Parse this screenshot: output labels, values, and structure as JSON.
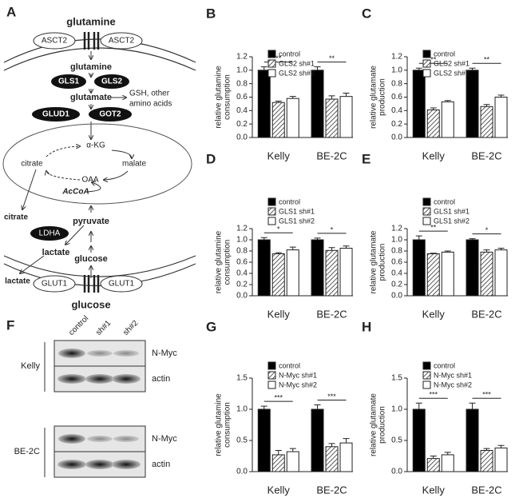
{
  "diagram": {
    "label": "A",
    "texts": [
      "glutamine",
      "ASCT2",
      "ASCT2",
      "glutamine",
      "GLS1",
      "GLS2",
      "glutamate",
      "GSH, other",
      "amino acids",
      "GLUD1",
      "GOT2",
      "α-KG",
      "citrate",
      "malate",
      "OAA",
      "AcCoA",
      "citrate",
      "pyruvate",
      "LDHA",
      "lactate",
      "glucose",
      "lactate",
      "GLUT1",
      "GLUT1",
      "glucose"
    ]
  },
  "blot": {
    "label": "F",
    "columns": [
      "control",
      "sh#1",
      "sh#2"
    ],
    "groups": [
      {
        "name": "Kelly",
        "rows": [
          "N-Myc",
          "actin"
        ]
      },
      {
        "name": "BE-2C",
        "rows": [
          "N-Myc",
          "actin"
        ]
      }
    ]
  },
  "chart_data": [
    {
      "type": "bar",
      "label": "B",
      "ylabel": [
        "relative glutamine",
        "consumption"
      ],
      "categories": [
        "Kelly",
        "BE-2C"
      ],
      "ylim": [
        0,
        1.2
      ],
      "yticks": [
        {
          "value": 0,
          "label": "0.0"
        },
        0.2,
        0.4,
        0.6,
        0.8,
        {
          "value": 1,
          "label": "1.0"
        },
        1.2
      ],
      "significance": [
        "**",
        "**"
      ],
      "series": [
        {
          "name": "control",
          "color": "#000000",
          "values": [
            1.0,
            1.0
          ],
          "errors": [
            0.05,
            0.05
          ]
        },
        {
          "name": "GLS2 sh#1",
          "color": "hatch",
          "values": [
            0.52,
            0.57
          ],
          "errors": [
            0.02,
            0.05
          ]
        },
        {
          "name": "GLS2 sh#2",
          "color": "#ffffff",
          "values": [
            0.58,
            0.61
          ],
          "errors": [
            0.03,
            0.05
          ]
        }
      ]
    },
    {
      "type": "bar",
      "label": "C",
      "ylabel": [
        "relative glutamate",
        "production"
      ],
      "categories": [
        "Kelly",
        "BE-2C"
      ],
      "ylim": [
        0,
        1.2
      ],
      "yticks": [
        {
          "value": 0,
          "label": "0.0"
        },
        0.2,
        0.4,
        0.6,
        0.8,
        {
          "value": 1,
          "label": "1.0"
        },
        1.2
      ],
      "significance": [
        "**",
        "**"
      ],
      "series": [
        {
          "name": "control",
          "color": "#000000",
          "values": [
            1.0,
            1.0
          ],
          "errors": [
            0.03,
            0.03
          ]
        },
        {
          "name": "GLS2 sh#1",
          "color": "hatch",
          "values": [
            0.41,
            0.46
          ],
          "errors": [
            0.03,
            0.03
          ]
        },
        {
          "name": "GLS2 sh#2",
          "color": "#ffffff",
          "values": [
            0.53,
            0.6
          ],
          "errors": [
            0.02,
            0.03
          ]
        }
      ]
    },
    {
      "type": "bar",
      "label": "D",
      "ylabel": [
        "relative glutamine",
        "consumption"
      ],
      "categories": [
        "Kelly",
        "BE-2C"
      ],
      "ylim": [
        0,
        1.2
      ],
      "yticks": [
        {
          "value": 0,
          "label": "0.0"
        },
        0.2,
        0.4,
        0.6,
        0.8,
        {
          "value": 1,
          "label": "1.0"
        },
        1.2
      ],
      "significance": [
        "*",
        "*"
      ],
      "series": [
        {
          "name": "control",
          "color": "#000000",
          "values": [
            1.0,
            1.0
          ],
          "errors": [
            0.04,
            0.03
          ]
        },
        {
          "name": "GLS1 sh#1",
          "color": "hatch",
          "values": [
            0.75,
            0.81
          ],
          "errors": [
            0.02,
            0.05
          ]
        },
        {
          "name": "GLS1 sh#2",
          "color": "#ffffff",
          "values": [
            0.82,
            0.85
          ],
          "errors": [
            0.05,
            0.04
          ]
        }
      ]
    },
    {
      "type": "bar",
      "label": "E",
      "ylabel": [
        "relative glutamate",
        "production"
      ],
      "categories": [
        "Kelly",
        "BE-2C"
      ],
      "ylim": [
        0,
        1.2
      ],
      "yticks": [
        {
          "value": 0,
          "label": "0.0"
        },
        0.2,
        0.4,
        0.6,
        0.8,
        {
          "value": 1,
          "label": "1.0"
        },
        1.2
      ],
      "significance": [
        "**",
        "*"
      ],
      "series": [
        {
          "name": "control",
          "color": "#000000",
          "values": [
            1.0,
            1.0
          ],
          "errors": [
            0.07,
            0.02
          ]
        },
        {
          "name": "GLS1 sh#1",
          "color": "hatch",
          "values": [
            0.75,
            0.78
          ],
          "errors": [
            0.01,
            0.04
          ]
        },
        {
          "name": "GLS1 sh#2",
          "color": "#ffffff",
          "values": [
            0.78,
            0.82
          ],
          "errors": [
            0.02,
            0.03
          ]
        }
      ]
    },
    {
      "type": "bar",
      "label": "G",
      "ylabel": [
        "relative glutamine",
        "consumption"
      ],
      "categories": [
        "Kelly",
        "BE-2C"
      ],
      "ylim": [
        0,
        1.5
      ],
      "yticks": [
        {
          "value": 0,
          "label": "0.0"
        },
        0.5,
        {
          "value": 1,
          "label": "1.0"
        },
        1.5
      ],
      "significance": [
        "***",
        "***"
      ],
      "series": [
        {
          "name": "control",
          "color": "#000000",
          "values": [
            1.0,
            1.0
          ],
          "errors": [
            0.05,
            0.07
          ]
        },
        {
          "name": "N-Myc sh#1",
          "color": "hatch",
          "values": [
            0.27,
            0.4
          ],
          "errors": [
            0.07,
            0.05
          ]
        },
        {
          "name": "N-Myc sh#2",
          "color": "#ffffff",
          "values": [
            0.32,
            0.46
          ],
          "errors": [
            0.05,
            0.07
          ]
        }
      ]
    },
    {
      "type": "bar",
      "label": "H",
      "ylabel": [
        "relative glutamate",
        "production"
      ],
      "categories": [
        "Kelly",
        "BE-2C"
      ],
      "ylim": [
        0,
        1.5
      ],
      "yticks": [
        {
          "value": 0,
          "label": "0.0"
        },
        0.5,
        {
          "value": 1,
          "label": "1.0"
        },
        1.5
      ],
      "significance": [
        "***",
        "***"
      ],
      "series": [
        {
          "name": "control",
          "color": "#000000",
          "values": [
            1.0,
            1.0
          ],
          "errors": [
            0.1,
            0.1
          ]
        },
        {
          "name": "N-Myc sh#1",
          "color": "hatch",
          "values": [
            0.21,
            0.34
          ],
          "errors": [
            0.04,
            0.03
          ]
        },
        {
          "name": "N-Myc sh#2",
          "color": "#ffffff",
          "values": [
            0.27,
            0.38
          ],
          "errors": [
            0.04,
            0.04
          ]
        }
      ]
    }
  ]
}
